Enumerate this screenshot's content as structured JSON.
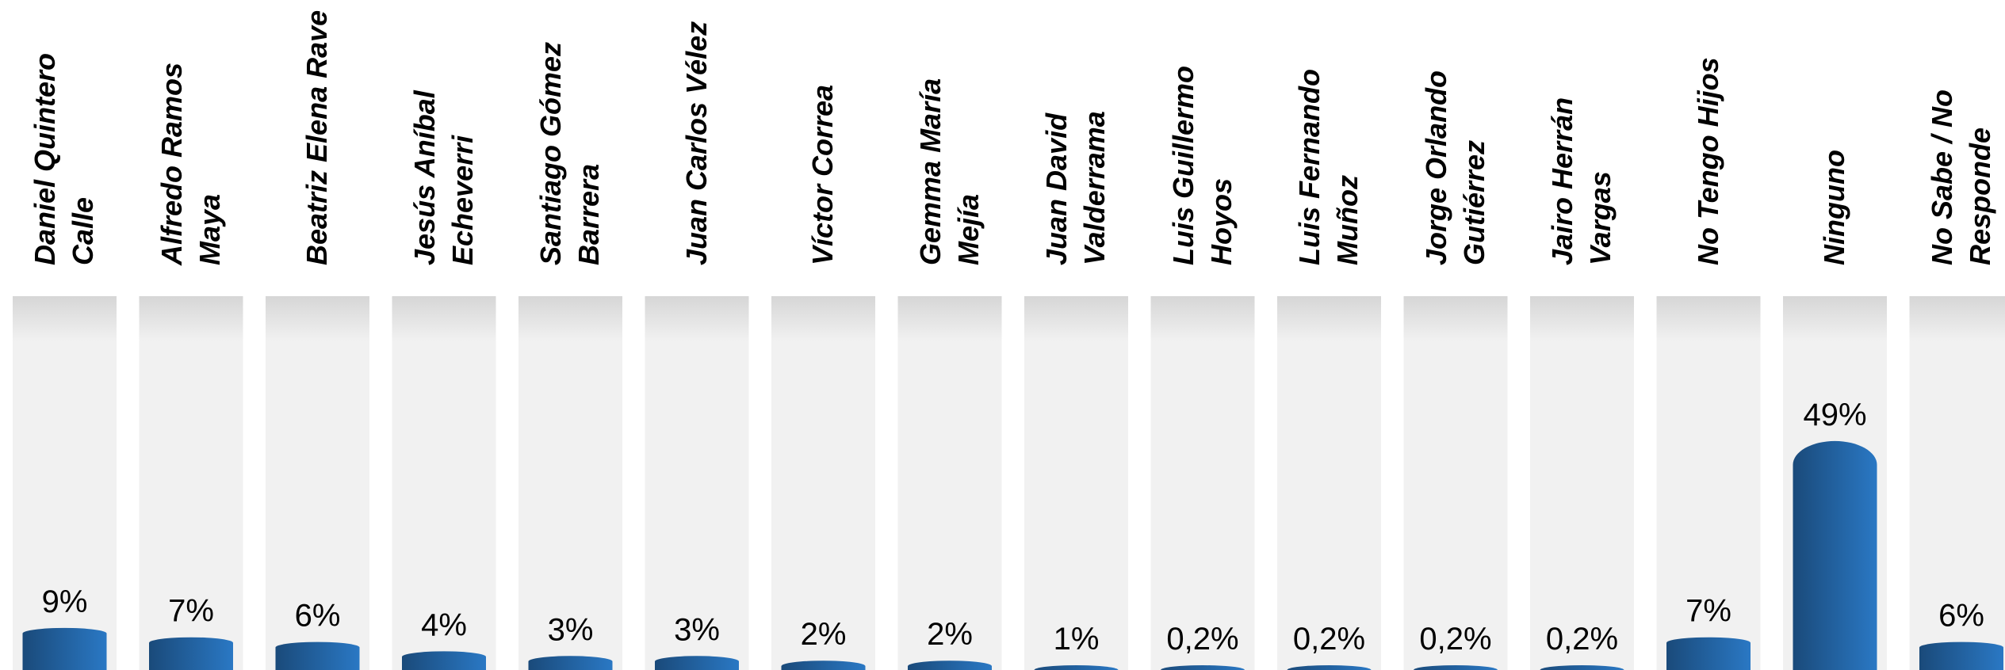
{
  "chart_data": {
    "type": "bar",
    "title": "",
    "xlabel": "",
    "ylabel": "",
    "ylim": [
      0,
      100
    ],
    "categories": [
      [
        "Daniel Quintero",
        "Calle"
      ],
      [
        "Alfredo Ramos",
        "Maya"
      ],
      [
        "Beatriz Elena Rave"
      ],
      [
        "Jesús Aníbal",
        "Echeverri"
      ],
      [
        "Santiago Gómez",
        "Barrera"
      ],
      [
        "Juan Carlos Vélez"
      ],
      [
        "Víctor Correa"
      ],
      [
        "Gemma María",
        "Mejía"
      ],
      [
        "Juan David",
        "Valderrama"
      ],
      [
        "Luis Guillermo",
        "Hoyos"
      ],
      [
        "Luis Fernando",
        "Muñoz"
      ],
      [
        "Jorge Orlando",
        "Gutiérrez"
      ],
      [
        "Jairo Herrán",
        "Vargas"
      ],
      [
        "No Tengo Hijos"
      ],
      [
        "Ninguno"
      ],
      [
        "No Sabe / No",
        "Responde"
      ]
    ],
    "values": [
      9,
      7,
      6,
      4,
      3,
      3,
      2,
      2,
      1,
      0.2,
      0.2,
      0.2,
      0.2,
      7,
      49,
      6
    ],
    "data_labels": [
      "9%",
      "7%",
      "6%",
      "4%",
      "3%",
      "3%",
      "2%",
      "2%",
      "1%",
      "0,2%",
      "0,2%",
      "0,2%",
      "0,2%",
      "7%",
      "49%",
      "6%"
    ],
    "grid": false,
    "legend": "none",
    "colors": {
      "bar_dark": "#1a4a7a",
      "bar_light": "#2a78c4",
      "track_top": "#d6d6d6",
      "track": "#f1f1f1",
      "text": "#000000"
    }
  }
}
